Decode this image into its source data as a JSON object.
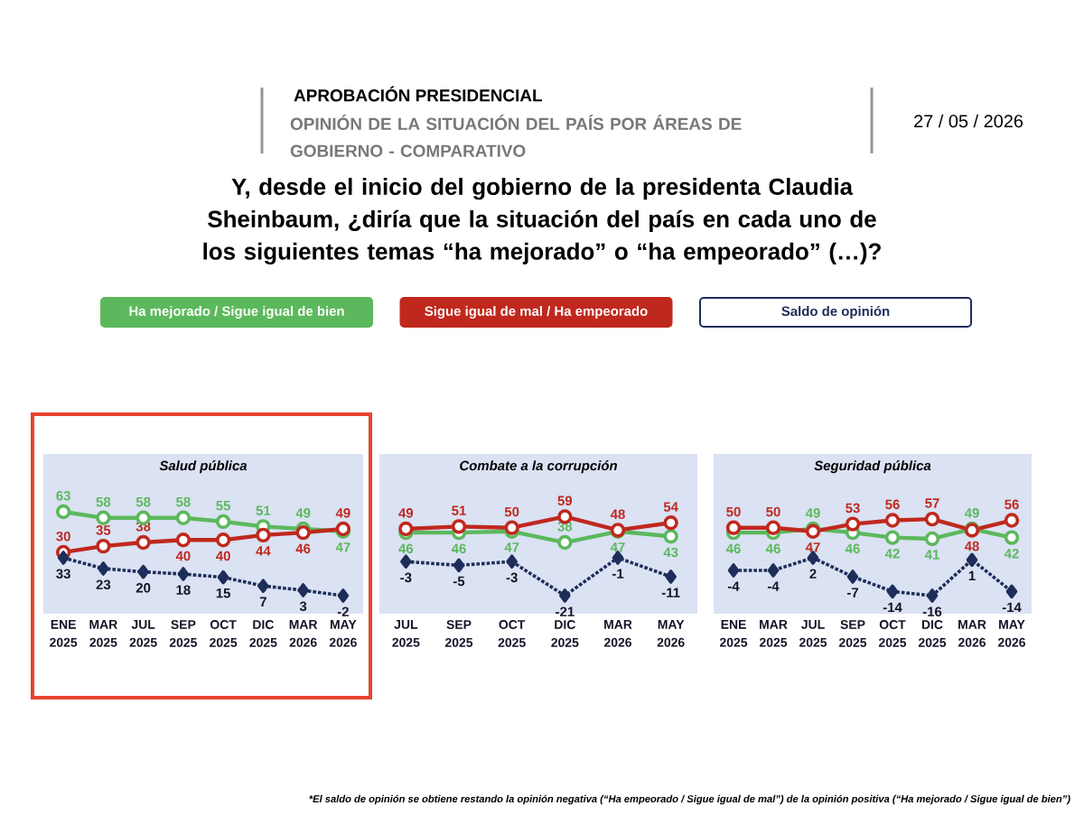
{
  "chart_data": [
    {
      "type": "line",
      "title": "Salud pública",
      "categories": [
        "ENE 2025",
        "MAR 2025",
        "JUL 2025",
        "SEP 2025",
        "OCT 2025",
        "DIC 2025",
        "MAR 2026",
        "MAY 2026"
      ],
      "series": [
        {
          "name": "Ha mejorado / Sigue igual de bien",
          "color": "#5cb85c",
          "marker": "circle",
          "values": [
            63,
            58,
            58,
            58,
            55,
            51,
            49,
            47
          ]
        },
        {
          "name": "Sigue igual de mal / Ha empeorado",
          "color": "#c0281e",
          "marker": "circle",
          "values": [
            30,
            35,
            38,
            40,
            40,
            44,
            46,
            49
          ]
        },
        {
          "name": "Saldo de opinión",
          "color": "#1f2d5a",
          "marker": "diamond",
          "line_style": "dotted",
          "axis": "y2",
          "values": [
            33,
            23,
            20,
            18,
            15,
            7,
            3,
            -2
          ]
        }
      ],
      "ylim": [
        -20,
        110
      ],
      "data_labels": true,
      "tick_labels": "x",
      "legend": "top",
      "annotations": [
        "APROBACIÓN PRESIDENCIAL",
        "OPINIÓN DE LA SITUACIÓN DEL PAÍS POR ÁREAS DE GOBIERNO - COMPARATIVO",
        "27 / 05 / 2026",
        "Y, desde el inicio del gobierno de la presidenta Claudia Sheinbaum, ¿diría que la situación del país en cada uno de los siguientes temas “ha mejorado” o “ha empeorado” (…)?",
        "*El saldo de opinión se obtiene restando la opinión negativa (“Ha empeorado / Sigue igual de mal”) de la opinión positiva (“Ha mejorado / Sigue igual de bien”)"
      ]
    },
    {
      "type": "line",
      "title": "Combate a la corrupción",
      "categories": [
        "JUL 2025",
        "SEP 2025",
        "OCT 2025",
        "DIC 2025",
        "MAR 2026",
        "MAY 2026"
      ],
      "series": [
        {
          "color": "#5cb85c",
          "marker": "circle",
          "values": [
            46,
            46,
            47,
            38,
            47,
            43
          ]
        },
        {
          "color": "#c0281e",
          "marker": "circle",
          "values": [
            49,
            51,
            50,
            59,
            48,
            54
          ]
        },
        {
          "color": "#1f2d5a",
          "marker": "diamond",
          "line_style": "dotted",
          "axis": "y2",
          "values": [
            -3,
            -5,
            -3,
            -21,
            -1,
            -11
          ]
        }
      ],
      "ylim": [
        -20,
        110
      ],
      "data_labels": true,
      "tick_labels": "x"
    },
    {
      "type": "line",
      "title": "Seguridad pública",
      "categories": [
        "ENE 2025",
        "MAR 2025",
        "JUL 2025",
        "SEP 2025",
        "OCT 2025",
        "DIC 2025",
        "MAR 2026",
        "MAY 2026"
      ],
      "series": [
        {
          "color": "#5cb85c",
          "marker": "circle",
          "values": [
            46,
            46,
            49,
            46,
            42,
            41,
            49,
            42
          ]
        },
        {
          "color": "#c0281e",
          "marker": "circle",
          "values": [
            50,
            50,
            47,
            53,
            56,
            57,
            48,
            56
          ]
        },
        {
          "color": "#1f2d5a",
          "marker": "diamond",
          "line_style": "dotted",
          "axis": "y2",
          "values": [
            -4,
            -4,
            2,
            -7,
            -14,
            -16,
            1,
            -14
          ]
        }
      ],
      "ylim": [
        -20,
        110
      ],
      "data_labels": true,
      "tick_labels": "x"
    }
  ]
}
